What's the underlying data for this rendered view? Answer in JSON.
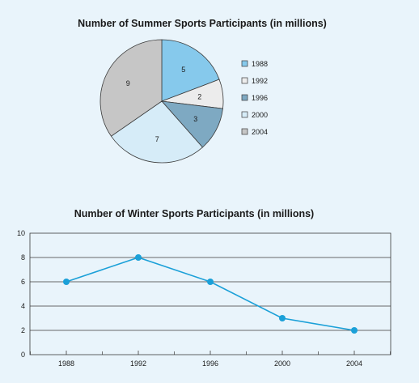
{
  "chart_data": [
    {
      "type": "pie",
      "title": "Number of Summer Sports Participants (in millions)",
      "categories": [
        "1988",
        "1992",
        "1996",
        "2000",
        "2004"
      ],
      "values": [
        5,
        2,
        3,
        7,
        9
      ],
      "colors": [
        "#86c9ec",
        "#ececec",
        "#7ea9c2",
        "#d6ecf8",
        "#c6c6c6"
      ],
      "legend_position": "right"
    },
    {
      "type": "line",
      "title": "Number of Winter Sports Participants (in millions)",
      "x": [
        "1988",
        "1992",
        "1996",
        "2000",
        "2004"
      ],
      "y": [
        6,
        8,
        6,
        3,
        2
      ],
      "ylim": [
        0,
        10
      ],
      "yticks": [
        "0",
        "2",
        "4",
        "6",
        "8",
        "10"
      ],
      "grid": true,
      "line_color": "#1ba0d8",
      "marker_color": "#1ba0d8"
    }
  ]
}
